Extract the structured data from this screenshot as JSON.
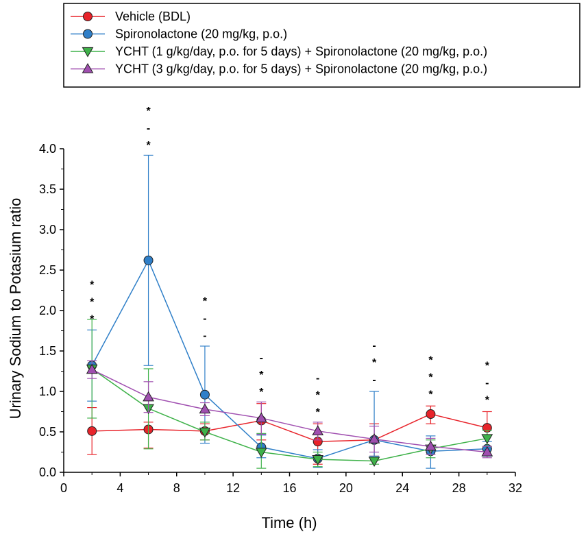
{
  "chart_data": {
    "type": "line",
    "xlabel": "Time (h)",
    "ylabel": "Urinary Sodium to Potasium ratio",
    "xlim": [
      0,
      32
    ],
    "ylim": [
      0,
      4.0
    ],
    "xticks": [
      "0",
      "4",
      "8",
      "12",
      "16",
      "20",
      "24",
      "28",
      "32"
    ],
    "yticks": [
      "0.0",
      "0.5",
      "1.0",
      "1.5",
      "2.0",
      "2.5",
      "3.0",
      "3.5",
      "4.0"
    ],
    "x": [
      2,
      6,
      10,
      14,
      18,
      22,
      26,
      30
    ],
    "legend_position": "top",
    "series": [
      {
        "name": "Vehicle (BDL)",
        "color": "#e8232a",
        "marker": "circle",
        "values": [
          0.51,
          0.53,
          0.51,
          0.64,
          0.38,
          0.4,
          0.72,
          0.55
        ],
        "err_low": [
          0.22,
          0.3,
          0.4,
          0.4,
          0.1,
          0.2,
          0.6,
          0.3
        ],
        "err_high": [
          0.8,
          0.62,
          0.6,
          0.85,
          0.6,
          0.6,
          0.82,
          0.75
        ]
      },
      {
        "name": "Spironolactone (20 mg/kg, p.o.)",
        "color": "#2f7fc8",
        "marker": "circle",
        "values": [
          1.32,
          2.62,
          0.96,
          0.31,
          0.17,
          0.4,
          0.26,
          0.29
        ],
        "err_low": [
          0.88,
          1.32,
          0.36,
          0.18,
          0.06,
          0.2,
          0.05,
          0.2
        ],
        "err_high": [
          1.76,
          3.92,
          1.56,
          0.46,
          0.28,
          1.0,
          0.45,
          0.38
        ]
      },
      {
        "name": "YCHT (1 g/kg/day, p.o. for 5 days) + Spironolactone (20 mg/kg, p.o.)",
        "color": "#3fb24a",
        "marker": "triangle-down",
        "values": [
          1.28,
          0.79,
          0.5,
          0.25,
          0.16,
          0.14,
          0.29,
          0.42
        ],
        "err_low": [
          0.67,
          0.29,
          0.4,
          0.05,
          0.07,
          0.1,
          0.18,
          0.32
        ],
        "err_high": [
          1.89,
          1.28,
          0.62,
          0.48,
          0.25,
          0.18,
          0.4,
          0.52
        ]
      },
      {
        "name": "YCHT (3 g/kg/day, p.o. for 5 days) + Spironolactone (20 mg/kg, p.o.)",
        "color": "#a04fb0",
        "marker": "triangle-up",
        "values": [
          1.27,
          0.93,
          0.78,
          0.67,
          0.51,
          0.41,
          0.32,
          0.25
        ],
        "err_low": [
          1.16,
          0.74,
          0.7,
          0.47,
          0.4,
          0.25,
          0.22,
          0.18
        ],
        "err_high": [
          1.38,
          1.12,
          0.86,
          0.87,
          0.62,
          0.57,
          0.42,
          0.32
        ]
      }
    ],
    "annotations": [
      {
        "x": 2,
        "y": 1.85,
        "marks": [
          "*",
          "*",
          "*"
        ]
      },
      {
        "x": 6,
        "y": 4.0,
        "marks": [
          "*",
          "-",
          "*"
        ]
      },
      {
        "x": 10,
        "y": 1.65,
        "marks": [
          "*",
          "-",
          "-"
        ]
      },
      {
        "x": 14,
        "y": 0.95,
        "marks": [
          "-",
          "*",
          "*"
        ]
      },
      {
        "x": 18,
        "y": 0.7,
        "marks": [
          "-",
          "*",
          "*"
        ]
      },
      {
        "x": 22,
        "y": 1.1,
        "marks": [
          "-",
          "*",
          "-"
        ]
      },
      {
        "x": 26,
        "y": 0.92,
        "marks": [
          "*",
          "*",
          "*"
        ]
      },
      {
        "x": 30,
        "y": 0.85,
        "marks": [
          "*",
          "-",
          "*"
        ]
      }
    ]
  }
}
